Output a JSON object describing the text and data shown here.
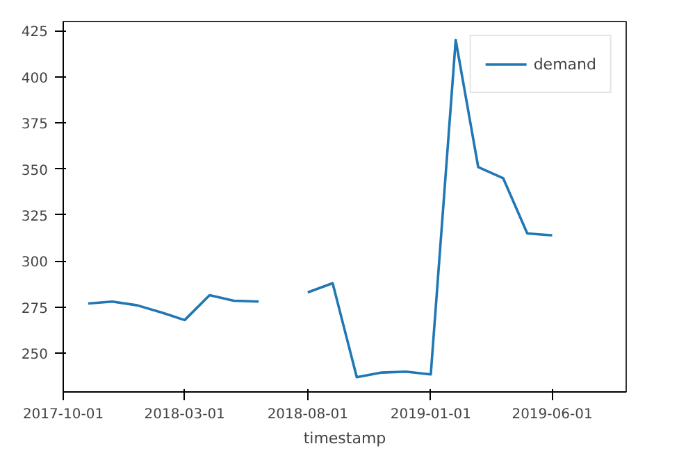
{
  "chart_data": {
    "type": "line",
    "xlabel": "timestamp",
    "x": [
      "2017-11-01",
      "2017-12-01",
      "2018-01-01",
      "2018-02-01",
      "2018-03-01",
      "2018-04-01",
      "2018-05-01",
      "2018-06-01",
      "2018-07-01",
      "2018-08-01",
      "2018-09-01",
      "2018-10-01",
      "2018-11-01",
      "2018-12-01",
      "2019-01-01",
      "2019-02-01",
      "2019-03-01",
      "2019-04-01",
      "2019-05-01",
      "2019-06-01"
    ],
    "series": [
      {
        "name": "demand",
        "color": "#1f77b4",
        "values": [
          277,
          278,
          276,
          272,
          268,
          281.5,
          278.5,
          278,
          null,
          283,
          288,
          237,
          239.5,
          240,
          238.5,
          420,
          351,
          345,
          315,
          314
        ]
      }
    ],
    "xlim": [
      "2017-10-01",
      "2019-09-01"
    ],
    "xticks": [
      "2017-10-01",
      "2018-03-01",
      "2018-08-01",
      "2019-01-01",
      "2019-06-01"
    ],
    "ylim": [
      229,
      430
    ],
    "yticks": [
      250,
      275,
      300,
      325,
      350,
      375,
      400,
      425
    ],
    "grid": false,
    "legend": "top right",
    "marker": "none",
    "line_style": "solid"
  }
}
